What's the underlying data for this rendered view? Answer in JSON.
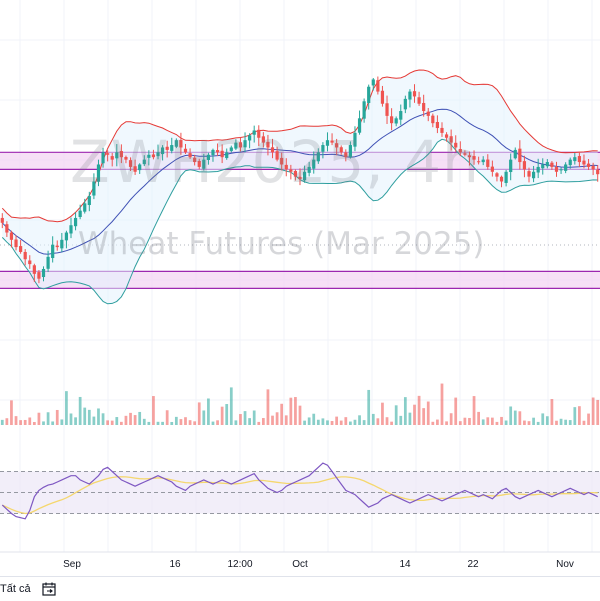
{
  "watermark": {
    "symbol": "ZWH2025, 4h",
    "description": "Wheat Futures (Mar 2025)"
  },
  "footer": {
    "range_label": "Tất cả",
    "calendar_icon": "calendar-goto-icon"
  },
  "colors": {
    "up": "#26a69a",
    "down": "#ef5350",
    "bb_band": "#e53935",
    "bb_lower": "#2e9e9e",
    "bb_basis": "#3f51b5",
    "bb_fill": "#e3f2fd",
    "zone_fill": "#f3d5f3",
    "zone_border": "#9c27b0",
    "rsi_line": "#7e57c2",
    "rsi_ma": "#f5d76e",
    "rsi_band_fill": "#ede7f6"
  },
  "chart_data": {
    "type": "candlestick",
    "timeframe": "4h",
    "x_tick_labels": [
      "Sep",
      "16",
      "12:00",
      "Oct",
      "14",
      "22",
      "Nov"
    ],
    "price_zones": [
      {
        "name": "upper-zone",
        "low": 567,
        "high": 574
      },
      {
        "name": "lower-zone",
        "low": 518,
        "high": 525
      }
    ],
    "candles_close": [
      545,
      541,
      538,
      535,
      533,
      530,
      528,
      524,
      522,
      526,
      531,
      536,
      535,
      538,
      541,
      544,
      547,
      550,
      553,
      556,
      562,
      569,
      574,
      573,
      571,
      574,
      572,
      571,
      568,
      566,
      569,
      571,
      573,
      572,
      574,
      576,
      575,
      577,
      579,
      576,
      574,
      572,
      570,
      568,
      571,
      573,
      575,
      574,
      572,
      574,
      576,
      578,
      576,
      579,
      581,
      583,
      580,
      578,
      576,
      574,
      571,
      569,
      567,
      566,
      564,
      563,
      566,
      568,
      571,
      574,
      577,
      579,
      578,
      576,
      574,
      572,
      577,
      582,
      588,
      595,
      601,
      604,
      599,
      594,
      589,
      586,
      588,
      591,
      596,
      599,
      597,
      594,
      591,
      589,
      586,
      584,
      582,
      580,
      578,
      576,
      574,
      573,
      572,
      571,
      570,
      571,
      568,
      566,
      564,
      562,
      566,
      571,
      575,
      570,
      567,
      564,
      566,
      568,
      569,
      570,
      568,
      566,
      567,
      569,
      571,
      572,
      570,
      569,
      568,
      567,
      565
    ]
  },
  "rsi": {
    "levels": [
      70,
      50,
      30
    ],
    "values": [
      38,
      34,
      30,
      27,
      26,
      25,
      33,
      46,
      52,
      55,
      57,
      58,
      60,
      62,
      64,
      66,
      66,
      62,
      60,
      58,
      62,
      66,
      72,
      74,
      70,
      66,
      62,
      60,
      58,
      56,
      58,
      60,
      62,
      64,
      66,
      64,
      62,
      60,
      56,
      54,
      52,
      56,
      58,
      60,
      62,
      60,
      58,
      60,
      62,
      60,
      58,
      60,
      62,
      64,
      66,
      68,
      62,
      58,
      54,
      52,
      50,
      52,
      56,
      58,
      60,
      62,
      64,
      66,
      70,
      74,
      78,
      76,
      70,
      64,
      58,
      52,
      50,
      48,
      44,
      40,
      36,
      38,
      40,
      44,
      46,
      48,
      46,
      44,
      42,
      40,
      42,
      44,
      46,
      48,
      46,
      44,
      42,
      44,
      46,
      48,
      50,
      52,
      50,
      48,
      46,
      48,
      46,
      44,
      48,
      52,
      54,
      50,
      46,
      44,
      46,
      48,
      50,
      52,
      50,
      48,
      46,
      48,
      50,
      52,
      54,
      52,
      50,
      48,
      50,
      48,
      46
    ]
  }
}
